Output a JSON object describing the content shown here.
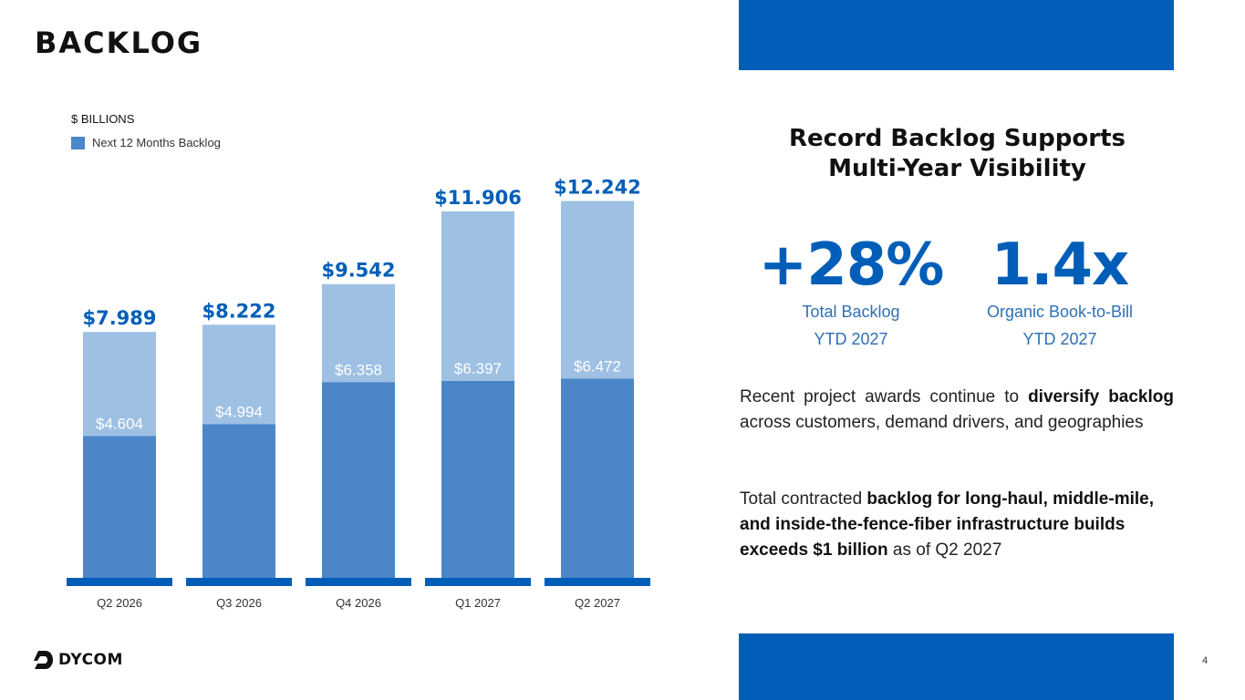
{
  "slide": {
    "title": "BACKLOG",
    "page_number": "4"
  },
  "chart_data": {
    "type": "bar",
    "stacked": true,
    "units_label": "$ BILLIONS",
    "legend": [
      "Next 12 Months Backlog"
    ],
    "categories": [
      "Q2 2026",
      "Q3 2026",
      "Q4 2026",
      "Q1 2027",
      "Q2 2027"
    ],
    "series": [
      {
        "name": "Next 12 Months Backlog",
        "values": [
          4.604,
          4.994,
          6.358,
          6.397,
          6.472
        ],
        "labels": [
          "$4.604",
          "$4.994",
          "$6.358",
          "$6.397",
          "$6.472"
        ],
        "color": "#4A86C8"
      },
      {
        "values": [
          3.385,
          3.228,
          3.184,
          5.509,
          5.77
        ],
        "color": "#9DC0E3"
      }
    ],
    "totals": [
      7.989,
      8.222,
      9.542,
      11.906,
      12.242
    ],
    "total_labels": [
      "$7.989",
      "$8.222",
      "$9.542",
      "$11.906",
      "$12.242"
    ],
    "ylim": [
      0,
      12.85
    ],
    "grid": false,
    "legend_position": "top-left",
    "colors": {
      "label_blue": "#005EB8",
      "base_line": "#005EB8"
    }
  },
  "sidebar": {
    "heading_line1": "Record Backlog Supports",
    "heading_line2": "Multi-Year Visibility",
    "kpis": [
      {
        "value": "+28%",
        "label1": "Total Backlog",
        "label2": "YTD 2027"
      },
      {
        "value": "1.4x",
        "label1": "Organic Book-to-Bill",
        "label2": "YTD 2027"
      }
    ],
    "para1": {
      "t1": "Recent project awards continue to ",
      "b1": "diversify backlog",
      "t2": " across customers, demand drivers, and geographies"
    },
    "para2": {
      "t1": "Total contracted ",
      "b1": "backlog for long-haul, middle-mile, and inside-the-fence-fiber infrastructure builds exceeds $1 billion",
      "t2": " as of Q2 2027"
    }
  },
  "logo": {
    "text": "DYCOM",
    "icon": "dycom-logo-icon"
  },
  "colors": {
    "brand_blue": "#005EB8"
  }
}
